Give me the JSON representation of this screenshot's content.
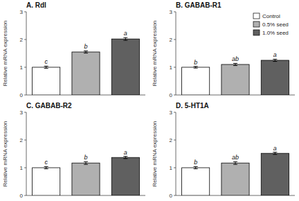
{
  "chart_data": [
    {
      "type": "bar",
      "title": "A. Rdl",
      "y_label": "Relative mRNA expression",
      "categories": [
        null,
        null,
        null
      ],
      "values": [
        1.0,
        1.55,
        2.02
      ],
      "errors": [
        0.04,
        0.04,
        0.05
      ],
      "annotations": [
        "c",
        "b",
        "a"
      ],
      "colors": [
        "white",
        "#b0b0b0",
        "#606060"
      ],
      "ylim": [
        0,
        3
      ],
      "yticks": [
        0,
        1,
        2,
        3
      ]
    },
    {
      "type": "bar",
      "title": "B. GABAB-R1",
      "y_label": "Relative mRNA expression",
      "categories": [
        null
      ],
      "series": [
        {
          "name": "Control",
          "color": "white",
          "values": [
            1.0
          ],
          "errors": [
            0.03
          ],
          "annotations": [
            "b"
          ]
        },
        {
          "name": "0.5% seed",
          "color": "#b0b0b0",
          "values": [
            1.1
          ],
          "errors": [
            0.04
          ],
          "annotations": [
            "ab"
          ]
        },
        {
          "name": "1.0% seed",
          "color": "#606060",
          "values": [
            1.25
          ],
          "errors": [
            0.04
          ],
          "annotations": [
            "a"
          ]
        }
      ],
      "legend": "upper right",
      "ylim": [
        0,
        3
      ],
      "yticks": [
        0,
        1,
        2,
        3
      ]
    },
    {
      "type": "bar",
      "title": "C. GABAB-R2",
      "y_label": "Relative mRNA expression",
      "categories": [
        null,
        null,
        null
      ],
      "values": [
        1.0,
        1.17,
        1.37
      ],
      "errors": [
        0.04,
        0.05,
        0.04
      ],
      "annotations": [
        "c",
        "b",
        "a"
      ],
      "colors": [
        "white",
        "#b0b0b0",
        "#606060"
      ],
      "ylim": [
        0,
        3
      ],
      "yticks": [
        0,
        1,
        2,
        3
      ]
    },
    {
      "type": "bar",
      "title": "D. 5-HT1A",
      "y_label": "Relative mRNA expression",
      "categories": [
        null,
        null,
        null
      ],
      "values": [
        1.0,
        1.17,
        1.52
      ],
      "errors": [
        0.04,
        0.05,
        0.04
      ],
      "annotations": [
        "b",
        "ab",
        "a"
      ],
      "colors": [
        "white",
        "#b0b0b0",
        "#606060"
      ],
      "ylim": [
        0,
        3
      ],
      "yticks": [
        0,
        1,
        2,
        3
      ]
    }
  ]
}
